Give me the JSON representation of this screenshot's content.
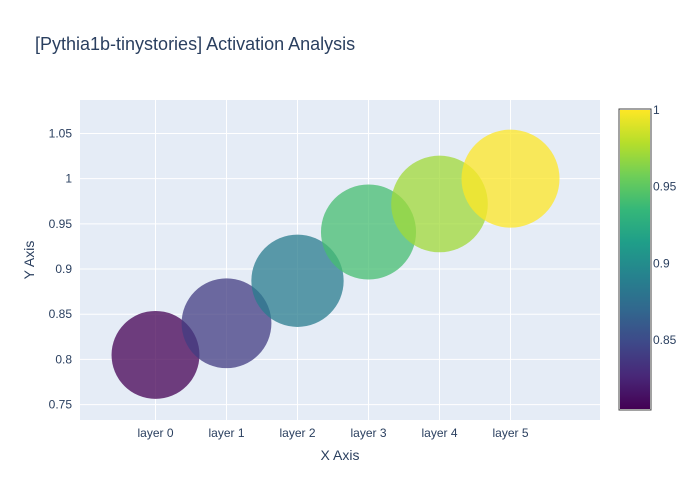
{
  "chart_data": {
    "type": "scatter",
    "title": "[Pythia1b-tinystories] Activation Analysis",
    "xlabel": "X Axis",
    "ylabel": "Y Axis",
    "categories": [
      "layer 0",
      "layer 1",
      "layer 2",
      "layer 3",
      "layer 4",
      "layer 5"
    ],
    "y": [
      0.805,
      0.84,
      0.887,
      0.941,
      0.972,
      1.0
    ],
    "color_values": [
      0.805,
      0.84,
      0.887,
      0.941,
      0.972,
      1.0
    ],
    "marker_size_values": [
      0.805,
      0.84,
      0.887,
      0.941,
      0.972,
      1.0
    ],
    "ylim": [
      0.733,
      1.087
    ],
    "yticks": [
      0.75,
      0.8,
      0.85,
      0.9,
      0.95,
      1,
      1.05
    ],
    "ytick_labels": [
      "0.75",
      "0.8",
      "0.85",
      "0.9",
      "0.95",
      "1",
      "1.05"
    ],
    "colorbar": {
      "colorscale": "viridis",
      "range": [
        0.805,
        1.0
      ],
      "ticks": [
        0.85,
        0.9,
        0.95,
        1
      ],
      "tick_labels": [
        "0.85",
        "0.9",
        "0.95",
        "1"
      ]
    },
    "grid": true,
    "legend": "none",
    "marker_opacity": 0.75,
    "plot_bg": "#e5ecf6"
  }
}
